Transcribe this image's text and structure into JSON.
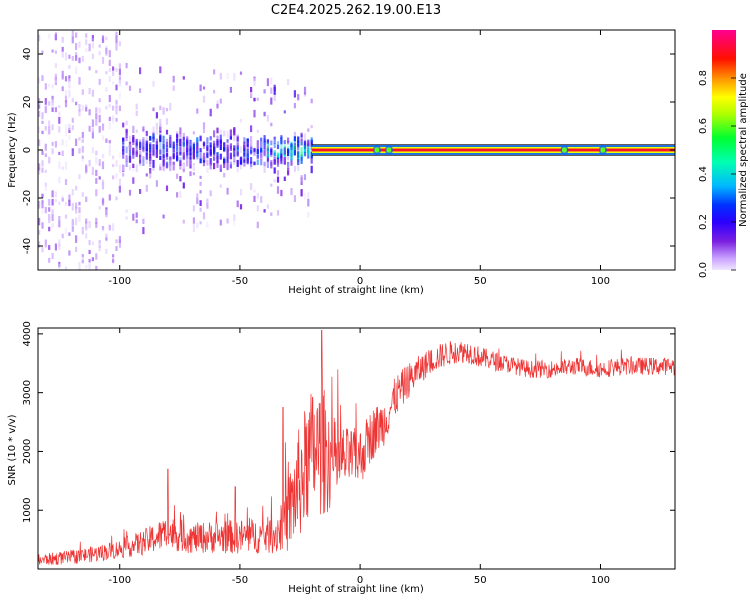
{
  "title": "C2E4.2025.262.19.00.E13",
  "chart_data": [
    {
      "type": "heatmap",
      "xlabel": "Height of straight line (km)",
      "ylabel": "Frequency (Hz)",
      "xlim": [
        -134,
        131
      ],
      "ylim": [
        -50,
        50
      ],
      "xticks": [
        -100,
        -50,
        0,
        50,
        100
      ],
      "yticks": [
        -40,
        -20,
        0,
        20,
        40
      ],
      "colorbar": {
        "label": "Normalized spectral amplitude",
        "range": [
          0,
          1
        ],
        "ticks": [
          0.0,
          0.2,
          0.4,
          0.6,
          0.8
        ],
        "colors": [
          "#f0e6ff",
          "#d0a8ff",
          "#8a2be2",
          "#4000ff",
          "#0000ff",
          "#00c8ff",
          "#00ffa0",
          "#00ff00",
          "#ffff00",
          "#ff8000",
          "#ff0000",
          "#ff0080"
        ]
      },
      "features": {
        "carrier_frequency_hz": 0,
        "carrier_band_hz": [
          -2,
          2
        ],
        "strong_line_from_km": -20,
        "noise_region_km": [
          -134,
          -100
        ],
        "broadened_region_km": [
          -100,
          -20
        ],
        "bright_spots_km": [
          7,
          12,
          85,
          101
        ]
      }
    },
    {
      "type": "line",
      "xlabel": "Height of straight line (km)",
      "ylabel": "SNR (10 * v/v)",
      "xlim": [
        -134,
        131
      ],
      "ylim": [
        0,
        4100
      ],
      "xticks": [
        -100,
        -50,
        0,
        50,
        100
      ],
      "yticks": [
        1000,
        2000,
        3000,
        4000
      ],
      "color": "#ee3333",
      "series": [
        {
          "name": "SNR",
          "x": [
            -134,
            -120,
            -110,
            -100,
            -90,
            -80,
            -70,
            -60,
            -50,
            -40,
            -35,
            -30,
            -25,
            -20,
            -15,
            -10,
            -5,
            0,
            5,
            10,
            15,
            20,
            25,
            30,
            35,
            40,
            45,
            50,
            55,
            60,
            70,
            80,
            90,
            100,
            110,
            120,
            131
          ],
          "values": [
            150,
            200,
            260,
            340,
            450,
            620,
            520,
            550,
            550,
            560,
            600,
            900,
            1500,
            2000,
            2000,
            1800,
            1900,
            1900,
            2300,
            2500,
            2950,
            3200,
            3400,
            3550,
            3650,
            3700,
            3700,
            3600,
            3550,
            3500,
            3400,
            3400,
            3450,
            3400,
            3450,
            3450,
            3450
          ],
          "noise": [
            100,
            120,
            140,
            160,
            220,
            300,
            260,
            280,
            300,
            300,
            350,
            650,
            1000,
            1100,
            1100,
            700,
            500,
            500,
            450,
            400,
            350,
            300,
            250,
            220,
            220,
            200,
            200,
            180,
            170,
            150,
            150,
            150,
            150,
            150,
            150,
            150,
            150
          ]
        }
      ],
      "peaks": [
        {
          "x": -16,
          "y": 4060
        },
        {
          "x": -32,
          "y": 2750
        },
        {
          "x": -80,
          "y": 1700
        },
        {
          "x": -52,
          "y": 1400
        }
      ]
    }
  ]
}
